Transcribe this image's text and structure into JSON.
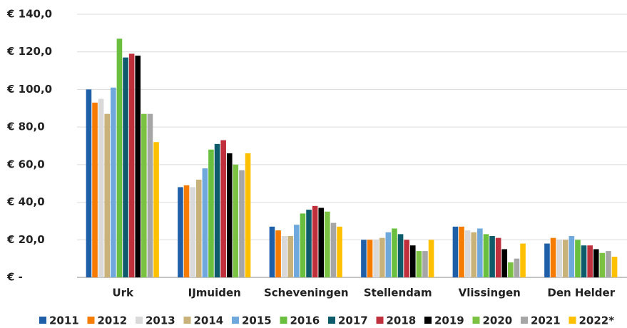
{
  "chart_data": {
    "type": "bar",
    "categories": [
      "Urk",
      "IJmuiden",
      "Scheveningen",
      "Stellendam",
      "Vlissingen",
      "Den Helder"
    ],
    "series": [
      {
        "name": "2011",
        "color": "#1f5fa8",
        "values": [
          100,
          48,
          27,
          20,
          27,
          18
        ]
      },
      {
        "name": "2012",
        "color": "#f57c00",
        "values": [
          93,
          49,
          25,
          20,
          27,
          21
        ]
      },
      {
        "name": "2013",
        "color": "#d9d9d9",
        "values": [
          95,
          48,
          22,
          20,
          25,
          20
        ]
      },
      {
        "name": "2014",
        "color": "#c8b27a",
        "values": [
          87,
          52,
          22,
          21,
          24,
          20
        ]
      },
      {
        "name": "2015",
        "color": "#6fa8dc",
        "values": [
          101,
          58,
          28,
          24,
          26,
          22
        ]
      },
      {
        "name": "2016",
        "color": "#6abf3f",
        "values": [
          127,
          68,
          34,
          26,
          23,
          20
        ]
      },
      {
        "name": "2017",
        "color": "#0e5c6b",
        "values": [
          117,
          71,
          36,
          23,
          22,
          17
        ]
      },
      {
        "name": "2018",
        "color": "#c0303c",
        "values": [
          119,
          73,
          38,
          20,
          21,
          17
        ]
      },
      {
        "name": "2019",
        "color": "#000000",
        "values": [
          118,
          66,
          37,
          17,
          15,
          15
        ]
      },
      {
        "name": "2020",
        "color": "#7cc242",
        "values": [
          87,
          60,
          35,
          14,
          8,
          13
        ]
      },
      {
        "name": "2021",
        "color": "#a6a6a6",
        "values": [
          87,
          57,
          29,
          14,
          10,
          14
        ]
      },
      {
        "name": "2022*",
        "color": "#ffc000",
        "values": [
          72,
          66,
          27,
          20,
          18,
          11
        ]
      }
    ],
    "ylim": [
      0,
      140
    ],
    "yticks": [
      {
        "value": 0,
        "label": "€ -"
      },
      {
        "value": 20,
        "label": "€ 20,0"
      },
      {
        "value": 40,
        "label": "€ 40,0"
      },
      {
        "value": 60,
        "label": "€ 60,0"
      },
      {
        "value": 80,
        "label": "€ 80,0"
      },
      {
        "value": 100,
        "label": "€ 100,0"
      },
      {
        "value": 120,
        "label": "€ 120,0"
      },
      {
        "value": 140,
        "label": "€ 140,0"
      }
    ],
    "grid": true,
    "legend": "bottom"
  }
}
